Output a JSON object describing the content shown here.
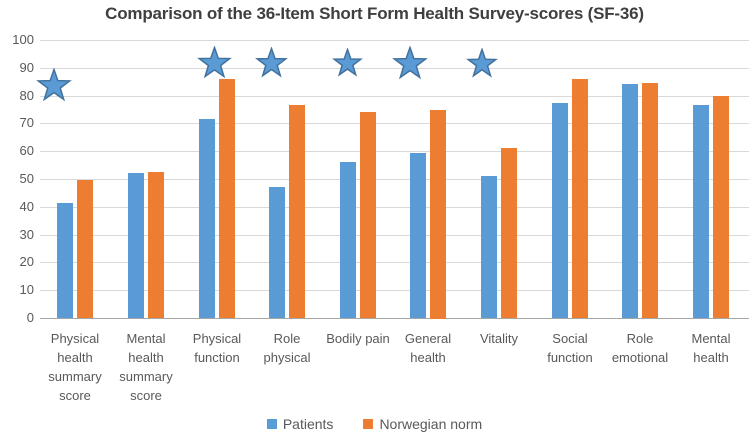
{
  "colors": {
    "patients": "#5B9BD5",
    "norwegian_norm": "#ED7D31",
    "star_fill": "#5B9BD5",
    "star_stroke": "#41719C",
    "gridline": "#D9D9D9",
    "axis_line": "#A6A6A6",
    "tick_text": "#595959",
    "title_text": "#3F3F3F"
  },
  "chart_data": {
    "type": "bar",
    "title": "Comparison of the 36-Item Short Form Health Survey-scores (SF-36)",
    "xlabel": "",
    "ylabel": "",
    "ylim": [
      0,
      100
    ],
    "yticks": [
      0,
      10,
      20,
      30,
      40,
      50,
      60,
      70,
      80,
      90,
      100
    ],
    "grid": true,
    "legend_position": "bottom",
    "categories": [
      "Physical\nhealth\nsummary\nscore",
      "Mental\nhealth\nsummary\nscore",
      "Physical\nfunction",
      "Role\nphysical",
      "Bodily pain",
      "General\nhealth",
      "Vitality",
      "Social\nfunction",
      "Role\nemotional",
      "Mental\nhealth"
    ],
    "series": [
      {
        "name": "Patients",
        "color": "#5B9BD5",
        "values": [
          41.5,
          52,
          71.5,
          47,
          56,
          59.5,
          51,
          77.5,
          84,
          76.5
        ]
      },
      {
        "name": "Norwegian norm",
        "color": "#ED7D31",
        "values": [
          49.5,
          52.5,
          86,
          76.5,
          74,
          75,
          61,
          86,
          84.5,
          80
        ]
      }
    ],
    "annotations": [
      {
        "type": "star",
        "category_index": 0,
        "y": 83.5,
        "x_offset": -21,
        "size": 36
      },
      {
        "type": "star",
        "category_index": 2,
        "y": 91.5,
        "x_offset": -2,
        "size": 35
      },
      {
        "type": "star",
        "category_index": 3,
        "y": 91.5,
        "x_offset": -16,
        "size": 33
      },
      {
        "type": "star",
        "category_index": 4,
        "y": 91.5,
        "x_offset": -10,
        "size": 31
      },
      {
        "type": "star",
        "category_index": 5,
        "y": 91.5,
        "x_offset": -18,
        "size": 36
      },
      {
        "type": "star",
        "category_index": 6,
        "y": 91.5,
        "x_offset": -17,
        "size": 32
      }
    ]
  }
}
